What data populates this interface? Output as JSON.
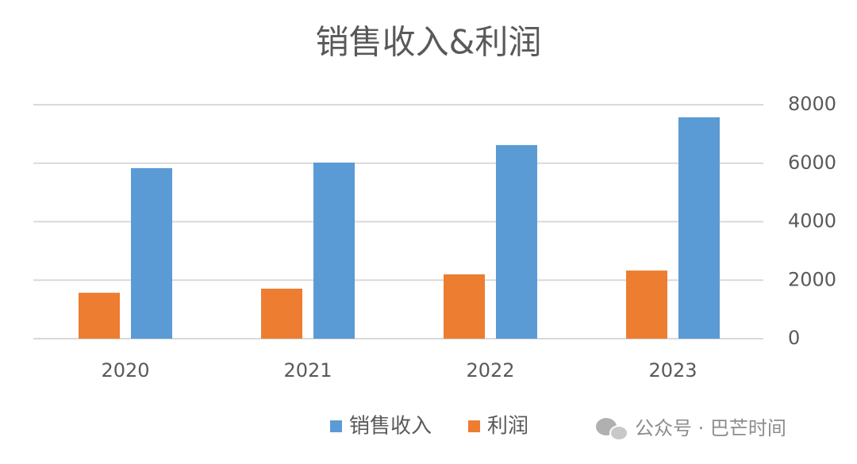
{
  "chart_data": {
    "type": "bar",
    "title": "销售收入&利润",
    "categories": [
      "2020",
      "2021",
      "2022",
      "2023"
    ],
    "series": [
      {
        "name": "销售收入",
        "color": "#5b9bd5",
        "values": [
          5830,
          6020,
          6620,
          7570
        ]
      },
      {
        "name": "利润",
        "color": "#ed7d31",
        "values": [
          1570,
          1710,
          2200,
          2330
        ]
      }
    ],
    "ylim": [
      0,
      8000
    ],
    "yticks": [
      0,
      2000,
      4000,
      6000,
      8000
    ],
    "grid": true,
    "y_axis_side": "right",
    "legend": "bottom",
    "watermark": "公众号 · 巴芒时间"
  }
}
